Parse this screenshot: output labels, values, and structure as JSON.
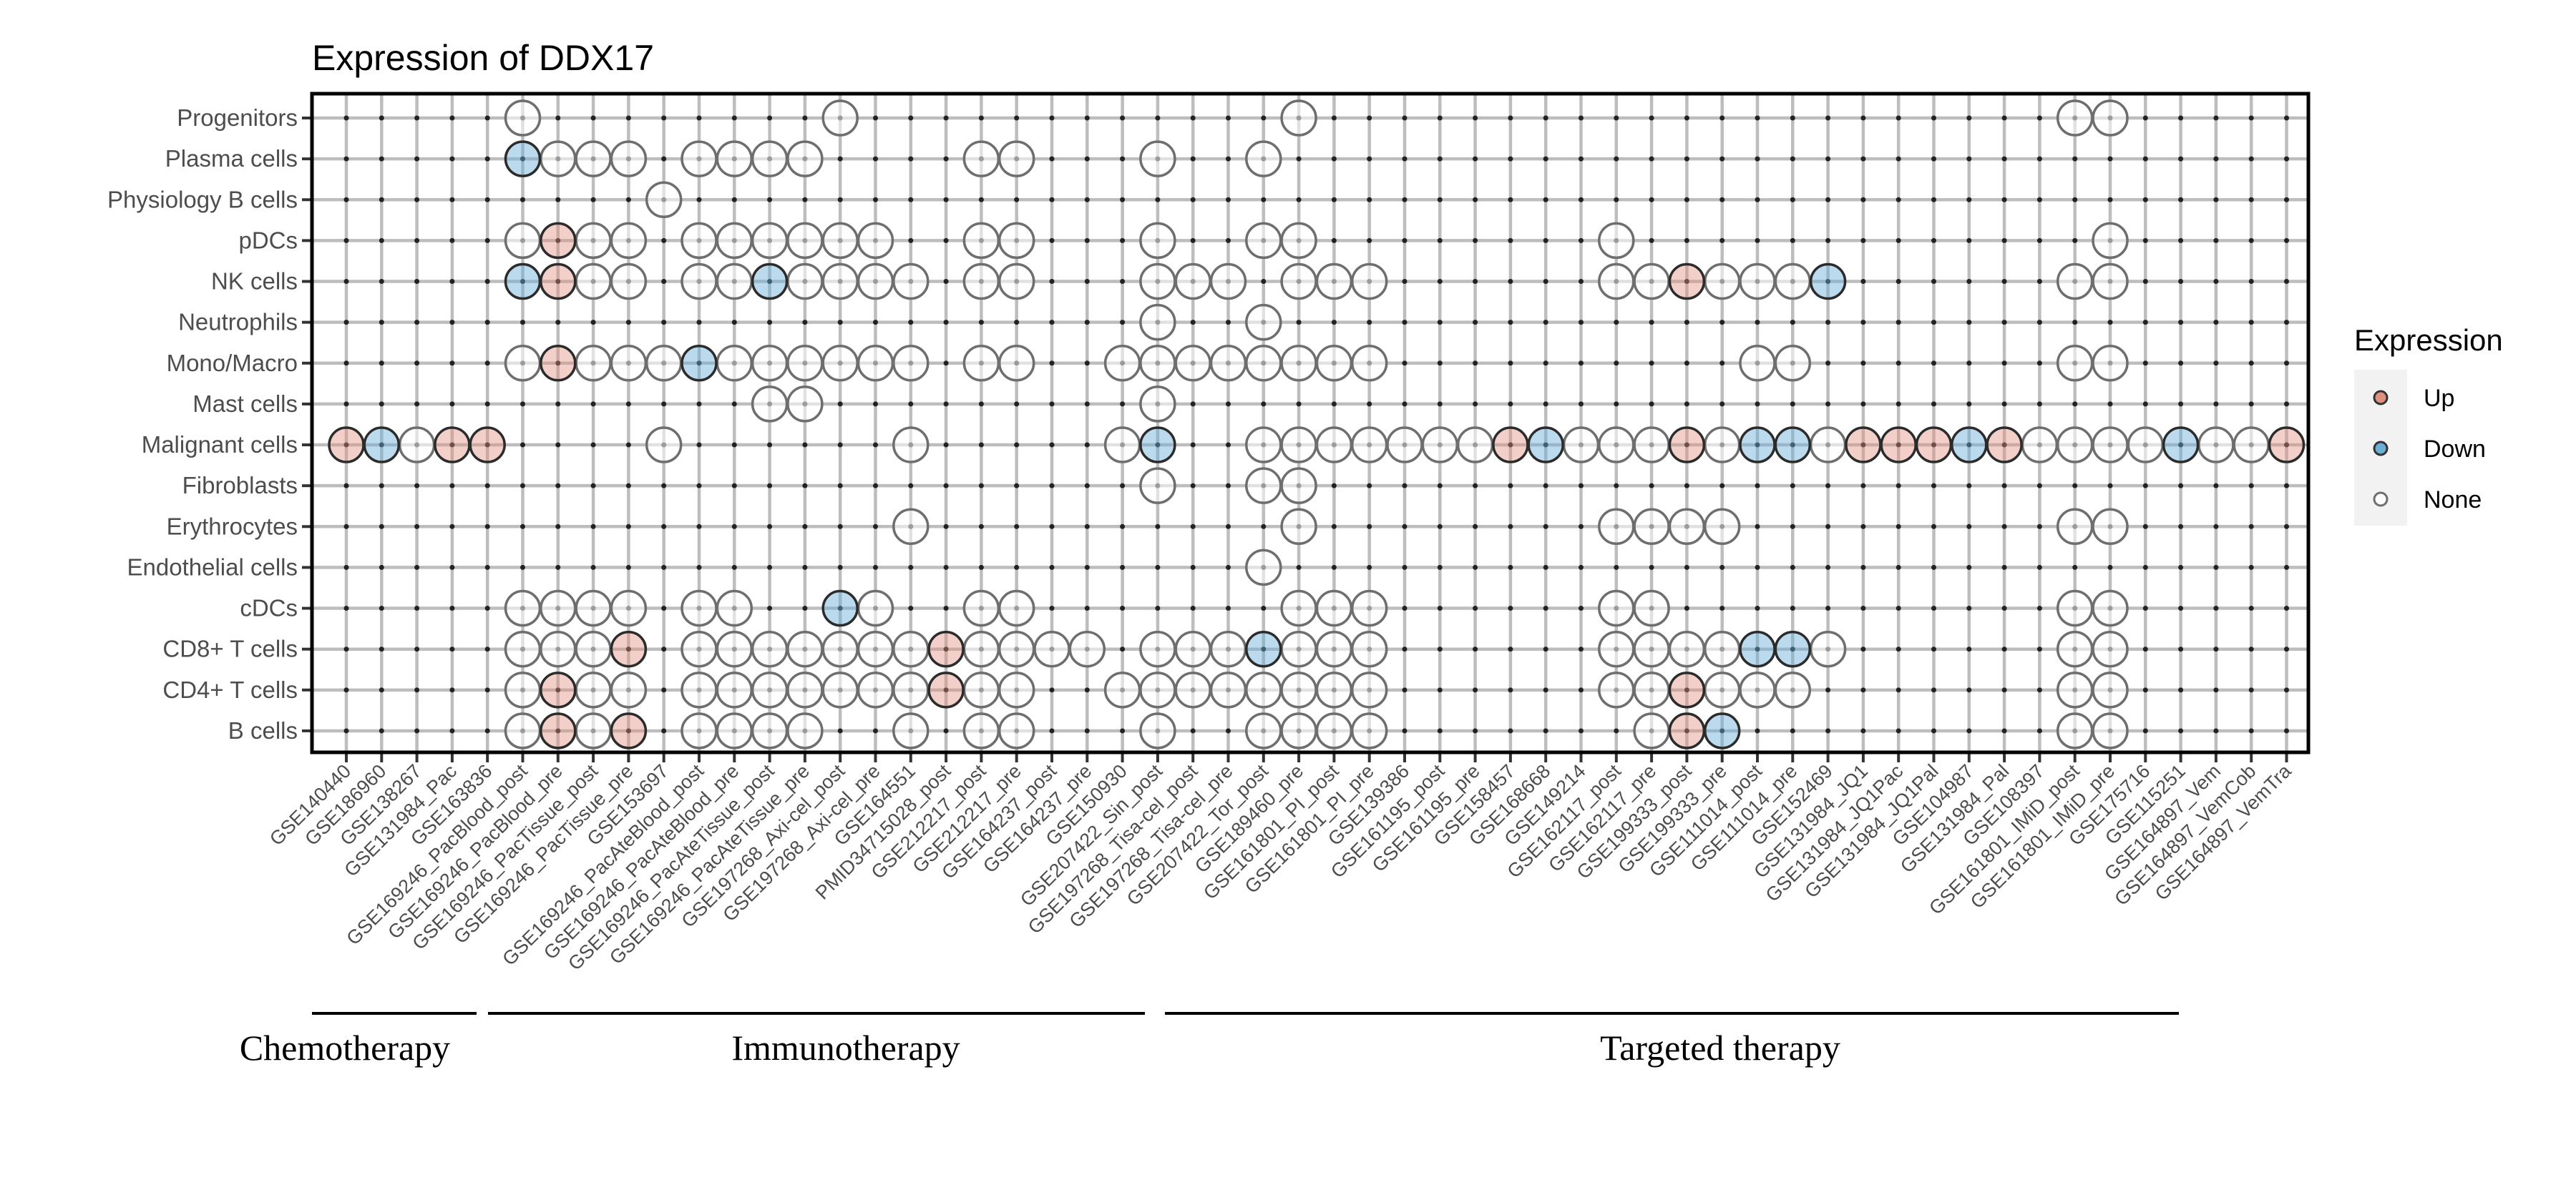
{
  "chart_data": {
    "type": "scatter",
    "title": "Expression of DDX17",
    "xlabel": "",
    "ylabel": "",
    "grid": true,
    "x_categories": [
      "GSE140440",
      "GSE186960",
      "GSE138267",
      "GSE131984_Pac",
      "GSE163836",
      "GSE169246_PacBlood_post",
      "GSE169246_PacBlood_pre",
      "GSE169246_PacTissue_post",
      "GSE169246_PacTissue_pre",
      "GSE153697",
      "GSE169246_PacAteBlood_post",
      "GSE169246_PacAteBlood_pre",
      "GSE169246_PacAteTissue_post",
      "GSE169246_PacAteTissue_pre",
      "GSE197268_Axi-cel_post",
      "GSE197268_Axi-cel_pre",
      "GSE164551",
      "PMID34715028_post",
      "GSE212217_post",
      "GSE212217_pre",
      "GSE164237_post",
      "GSE164237_pre",
      "GSE150930",
      "GSE207422_Sin_post",
      "GSE197268_Tisa-cel_post",
      "GSE197268_Tisa-cel_pre",
      "GSE207422_Tor_post",
      "GSE189460_pre",
      "GSE161801_PI_post",
      "GSE161801_PI_pre",
      "GSE139386",
      "GSE161195_post",
      "GSE161195_pre",
      "GSE158457",
      "GSE168668",
      "GSE149214",
      "GSE162117_post",
      "GSE162117_pre",
      "GSE199333_post",
      "GSE199333_pre",
      "GSE111014_post",
      "GSE111014_pre",
      "GSE152469",
      "GSE131984_JQ1",
      "GSE131984_JQ1Pac",
      "GSE131984_JQ1Pal",
      "GSE104987",
      "GSE131984_Pal",
      "GSE108397",
      "GSE161801_IMiD_post",
      "GSE161801_IMiD_pre",
      "GSE175716",
      "GSE115251",
      "GSE164897_Vem",
      "GSE164897_VemCob",
      "GSE164897_VemTra"
    ],
    "y_categories": [
      "Progenitors",
      "Plasma cells",
      "Physiology B cells",
      "pDCs",
      "NK cells",
      "Neutrophils",
      "Mono/Macro",
      "Mast cells",
      "Malignant cells",
      "Fibroblasts",
      "Erythrocytes",
      "Endothelial cells",
      "cDCs",
      "CD8+ T cells",
      "CD4+ T cells",
      "B cells"
    ],
    "points": {
      "Progenitors": {
        "Up": [],
        "Down": [],
        "None": [
          6,
          15,
          28,
          50,
          51
        ]
      },
      "Plasma cells": {
        "Up": [],
        "Down": [
          6
        ],
        "None": [
          7,
          8,
          9,
          11,
          12,
          13,
          14,
          19,
          20,
          24,
          27
        ]
      },
      "Physiology B cells": {
        "Up": [],
        "Down": [],
        "None": [
          10
        ]
      },
      "pDCs": {
        "Up": [
          7
        ],
        "Down": [],
        "None": [
          6,
          8,
          9,
          11,
          12,
          13,
          14,
          15,
          16,
          19,
          20,
          24,
          27,
          28,
          37,
          51
        ]
      },
      "NK cells": {
        "Up": [
          7,
          39
        ],
        "Down": [
          6,
          13,
          43
        ],
        "None": [
          8,
          9,
          11,
          12,
          14,
          15,
          16,
          17,
          19,
          20,
          24,
          25,
          26,
          28,
          29,
          30,
          37,
          38,
          40,
          41,
          42,
          50,
          51
        ]
      },
      "Neutrophils": {
        "Up": [],
        "Down": [],
        "None": [
          24,
          27
        ]
      },
      "Mono/Macro": {
        "Up": [
          7
        ],
        "Down": [
          11
        ],
        "None": [
          6,
          8,
          9,
          10,
          12,
          13,
          14,
          15,
          16,
          17,
          19,
          20,
          23,
          24,
          25,
          26,
          27,
          28,
          29,
          30,
          41,
          42,
          50,
          51
        ]
      },
      "Mast cells": {
        "Up": [],
        "Down": [],
        "None": [
          13,
          14,
          24
        ]
      },
      "Malignant cells": {
        "Up": [
          1,
          4,
          5,
          34,
          39,
          44,
          45,
          46,
          48,
          56
        ],
        "Down": [
          2,
          24,
          35,
          41,
          42,
          47,
          53
        ],
        "None": [
          3,
          10,
          17,
          23,
          27,
          28,
          29,
          30,
          31,
          32,
          33,
          36,
          37,
          38,
          40,
          43,
          49,
          50,
          51,
          52,
          54,
          55
        ]
      },
      "Fibroblasts": {
        "Up": [],
        "Down": [],
        "None": [
          24,
          27,
          28
        ]
      },
      "Erythrocytes": {
        "Up": [],
        "Down": [],
        "None": [
          17,
          28,
          37,
          38,
          39,
          40,
          50,
          51
        ]
      },
      "Endothelial cells": {
        "Up": [],
        "Down": [],
        "None": [
          27
        ]
      },
      "cDCs": {
        "Up": [],
        "Down": [
          15
        ],
        "None": [
          6,
          7,
          8,
          9,
          11,
          12,
          16,
          19,
          20,
          28,
          29,
          30,
          37,
          38,
          50,
          51
        ]
      },
      "CD8+ T cells": {
        "Up": [
          9,
          18
        ],
        "Down": [
          27,
          41,
          42
        ],
        "None": [
          6,
          7,
          8,
          11,
          12,
          13,
          14,
          15,
          16,
          17,
          19,
          20,
          21,
          22,
          24,
          25,
          26,
          28,
          29,
          30,
          37,
          38,
          39,
          40,
          43,
          50,
          51
        ]
      },
      "CD4+ T cells": {
        "Up": [
          7,
          18,
          39
        ],
        "Down": [],
        "None": [
          6,
          8,
          9,
          11,
          12,
          13,
          14,
          15,
          16,
          17,
          19,
          20,
          23,
          24,
          25,
          26,
          27,
          28,
          29,
          30,
          37,
          38,
          40,
          41,
          42,
          50,
          51
        ]
      },
      "B cells": {
        "Up": [
          7,
          9,
          39
        ],
        "Down": [
          40
        ],
        "None": [
          6,
          8,
          11,
          12,
          13,
          14,
          17,
          19,
          20,
          24,
          27,
          28,
          29,
          30,
          38,
          50,
          51
        ]
      }
    },
    "legend": {
      "title": "Expression",
      "placement": "right",
      "items": [
        {
          "label": "Up",
          "color": "#e0907f"
        },
        {
          "label": "Down",
          "color": "#6baed6"
        },
        {
          "label": "None",
          "color": "#ffffff"
        }
      ]
    },
    "groups": [
      {
        "label": "Chemotherapy",
        "from": 1,
        "to": 5
      },
      {
        "label": "Immunotherapy",
        "from": 6,
        "to": 23
      },
      {
        "label": "Targeted therapy",
        "from": 24,
        "to": 53
      }
    ]
  }
}
